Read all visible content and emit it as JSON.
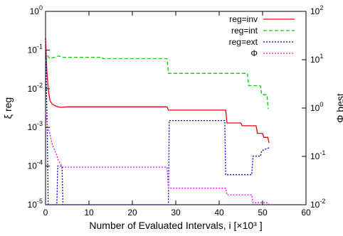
{
  "chart_data": {
    "type": "line",
    "title": "",
    "xlabel": "Number of Evaluated Intervals, i [×10³ ]",
    "ylabel_left": "ξ reg",
    "ylabel_right": "Φ best",
    "xlim": [
      0,
      60
    ],
    "ylim_left": [
      1e-05,
      1
    ],
    "ylim_right": [
      0.01,
      100
    ],
    "yscale_left": "log",
    "yscale_right": "log",
    "grid": false,
    "legend_position": "top-right",
    "x_ticks": [
      "0",
      "10",
      "20",
      "30",
      "40",
      "50",
      "60"
    ],
    "y_left_ticks": [
      {
        "value": 1,
        "mantissa": "10",
        "exp": "0"
      },
      {
        "value": 0.1,
        "mantissa": "10",
        "exp": "-1"
      },
      {
        "value": 0.01,
        "mantissa": "10",
        "exp": "-2"
      },
      {
        "value": 0.001,
        "mantissa": "10",
        "exp": "-3"
      },
      {
        "value": 0.0001,
        "mantissa": "10",
        "exp": "-4"
      },
      {
        "value": 1e-05,
        "mantissa": "10",
        "exp": "-5"
      }
    ],
    "y_right_ticks": [
      {
        "value": 100,
        "mantissa": "10",
        "exp": "2"
      },
      {
        "value": 10,
        "mantissa": "10",
        "exp": "1"
      },
      {
        "value": 1,
        "mantissa": "10",
        "exp": "0"
      },
      {
        "value": 0.1,
        "mantissa": "10",
        "exp": "-1"
      },
      {
        "value": 0.01,
        "mantissa": "10",
        "exp": "-2"
      }
    ],
    "series": [
      {
        "name": "reg=inv",
        "axis": "left",
        "color": "#e8000b",
        "dash": "solid",
        "points": [
          [
            0,
            0.2
          ],
          [
            0.3,
            0.03
          ],
          [
            0.6,
            0.01
          ],
          [
            1,
            0.005
          ],
          [
            1.5,
            0.004
          ],
          [
            2.5,
            0.0035
          ],
          [
            3.5,
            0.0033
          ],
          [
            5,
            0.0034
          ],
          [
            28,
            0.0034
          ],
          [
            28.3,
            0.0028
          ],
          [
            41.5,
            0.0028
          ],
          [
            41.8,
            0.0013
          ],
          [
            45,
            0.0013
          ],
          [
            45.3,
            0.0011
          ],
          [
            48.5,
            0.0011
          ],
          [
            48.8,
            0.0007
          ],
          [
            50,
            0.0007
          ],
          [
            50.3,
            0.00055
          ],
          [
            51.2,
            0.00055
          ],
          [
            51.5,
            0.0004
          ]
        ]
      },
      {
        "name": "reg=int",
        "axis": "left",
        "color": "#00cc00",
        "dash": "dashed",
        "points": [
          [
            0,
            0.05
          ],
          [
            0.5,
            0.07
          ],
          [
            1,
            0.06
          ],
          [
            2,
            0.065
          ],
          [
            3,
            0.07
          ],
          [
            4,
            0.065
          ],
          [
            13,
            0.065
          ],
          [
            13.2,
            0.06
          ],
          [
            28,
            0.06
          ],
          [
            28.3,
            0.025
          ],
          [
            46.5,
            0.025
          ],
          [
            46.8,
            0.012
          ],
          [
            49.5,
            0.012
          ],
          [
            49.8,
            0.007
          ],
          [
            51,
            0.007
          ],
          [
            51.3,
            0.003
          ]
        ]
      },
      {
        "name": "reg=ext",
        "axis": "left",
        "color": "#0000cc",
        "dash": "dotted",
        "points": [
          [
            0,
            0.2
          ],
          [
            0.2,
            0.01
          ],
          [
            0.4,
            0.001
          ],
          [
            0.6,
            1e-05
          ],
          [
            2.6,
            1e-05
          ],
          [
            2.8,
            0.0001
          ],
          [
            3.8,
            0.0001
          ],
          [
            4,
            1e-05
          ],
          [
            28.3,
            1e-05
          ],
          [
            28.5,
            0.0015
          ],
          [
            41.3,
            0.0015
          ],
          [
            41.5,
            6e-05
          ],
          [
            47.5,
            6e-05
          ],
          [
            47.8,
            0.00018
          ],
          [
            49.5,
            0.00018
          ],
          [
            49.8,
            0.00025
          ],
          [
            51.6,
            0.0003
          ]
        ]
      },
      {
        "name": "Φ",
        "axis": "right",
        "color": "#ff00ff",
        "dash": "dotted",
        "points": [
          [
            0,
            0.8
          ],
          [
            0.5,
            0.4
          ],
          [
            1,
            0.3
          ],
          [
            1.5,
            0.18
          ],
          [
            2,
            0.14
          ],
          [
            2.5,
            0.11
          ],
          [
            3,
            0.08
          ],
          [
            4,
            0.06
          ],
          [
            28,
            0.06
          ],
          [
            28.3,
            0.022
          ],
          [
            41.5,
            0.022
          ],
          [
            41.8,
            0.016
          ],
          [
            47.5,
            0.016
          ],
          [
            47.8,
            0.011
          ],
          [
            51.2,
            0.011
          ],
          [
            51.5,
            0.01
          ]
        ]
      }
    ]
  }
}
